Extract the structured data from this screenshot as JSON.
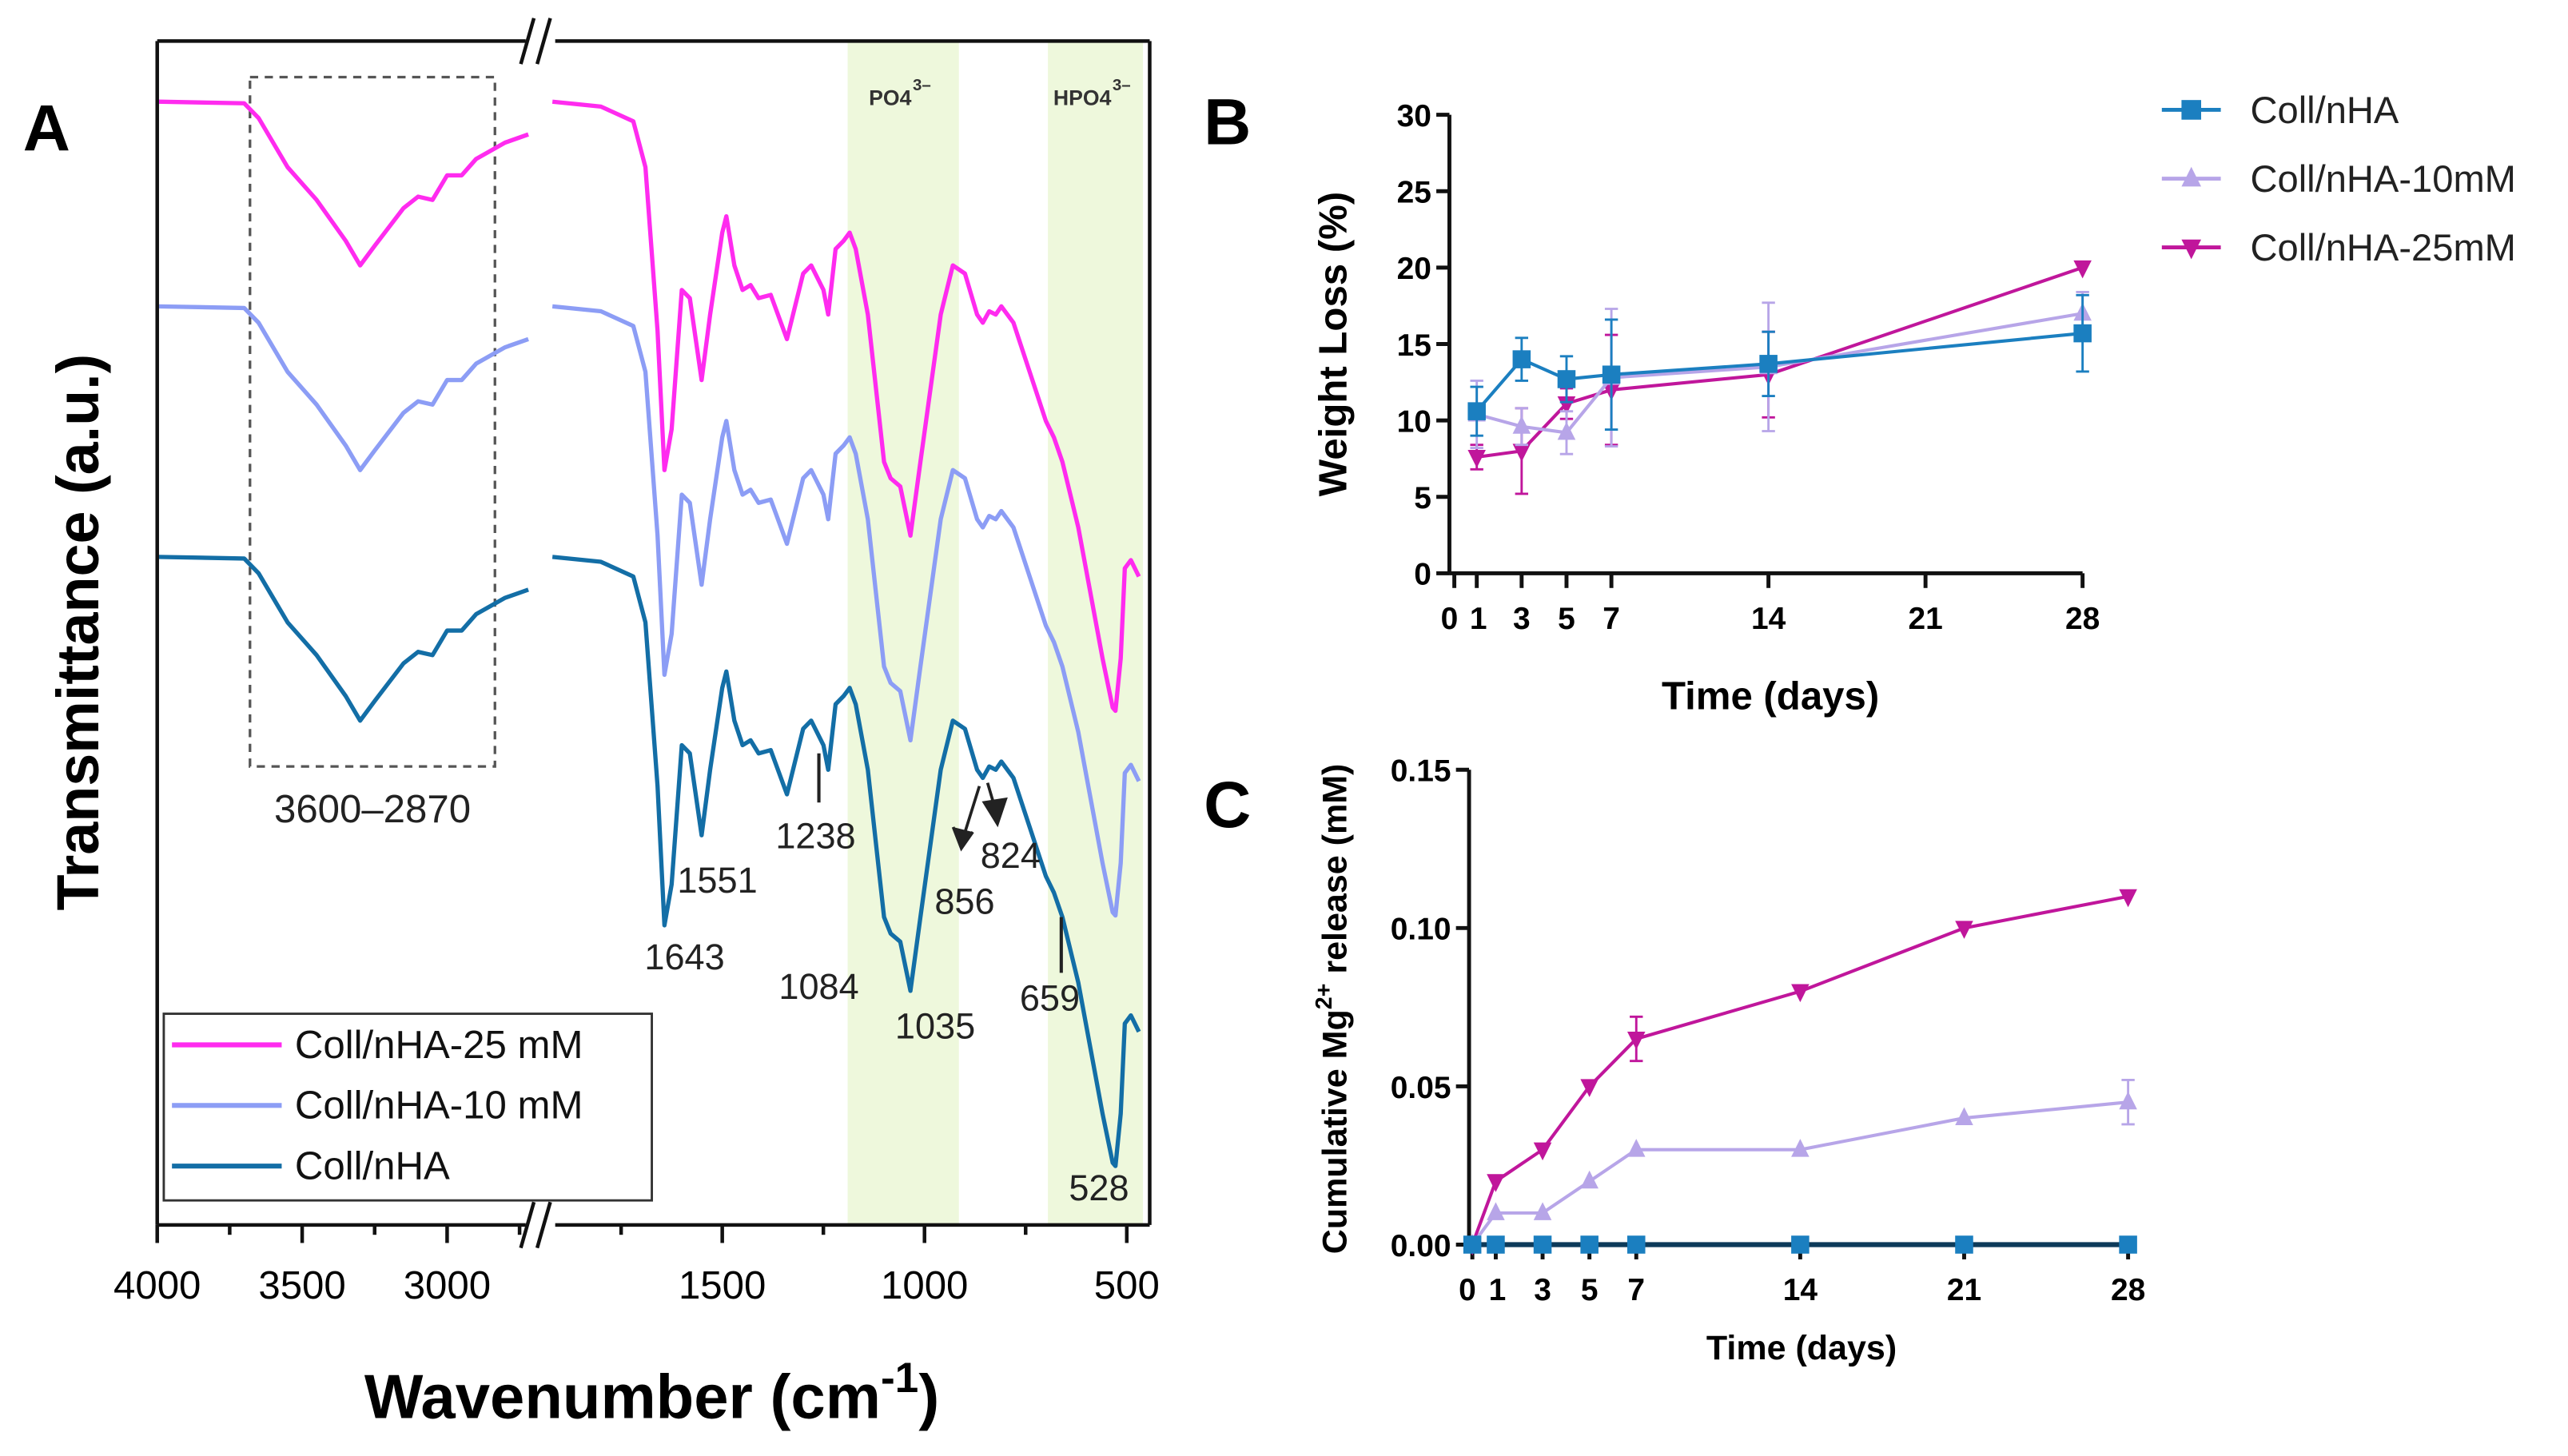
{
  "chart_data": [
    {
      "panel": "A",
      "type": "line",
      "xlabel": {
        "main": "Wavenumber (cm",
        "sup": "-1",
        "end": ")"
      },
      "ylabel": "Transmittance (a.u.)",
      "x_segments": [
        [
          4000,
          2720
        ],
        [
          1920,
          460
        ]
      ],
      "xticks_left": [
        4000,
        3500,
        3000
      ],
      "xticks_right": [
        1500,
        1000,
        500
      ],
      "ylim": [
        0,
        723
      ],
      "bands": [
        {
          "label": "PO4",
          "sup": "3–",
          "range": [
            1190,
            915
          ],
          "color": "#eef8dc"
        },
        {
          "label": "HPO4",
          "sup": "3–",
          "range": [
            695,
            460
          ],
          "color": "#eef8dc"
        }
      ],
      "box_label": "3600–2870",
      "box_range": [
        3680,
        2835
      ],
      "peak_labels": [
        "1643",
        "1551",
        "1238",
        "1084",
        "1035",
        "856",
        "824",
        "659",
        "528"
      ],
      "profile_left_x": [
        4000,
        3700,
        3650,
        3550,
        3450,
        3350,
        3300,
        3250,
        3150,
        3100,
        3050,
        3000,
        2950,
        2900,
        2800,
        2720
      ],
      "profile_left_y": [
        408,
        407,
        398,
        368,
        348,
        323,
        308,
        320,
        343,
        350,
        348,
        363,
        363,
        373,
        383,
        388
      ],
      "profile_right_x": [
        1920,
        1800,
        1720,
        1690,
        1660,
        1643,
        1625,
        1600,
        1580,
        1551,
        1530,
        1500,
        1490,
        1470,
        1450,
        1430,
        1410,
        1380,
        1340,
        1300,
        1280,
        1250,
        1238,
        1220,
        1200,
        1185,
        1170,
        1140,
        1100,
        1084,
        1060,
        1035,
        1010,
        960,
        930,
        900,
        870,
        856,
        840,
        824,
        810,
        780,
        740,
        700,
        680,
        659,
        620,
        590,
        560,
        535,
        528,
        515,
        505,
        490,
        470
      ],
      "profile_right_y": [
        408,
        405,
        396,
        368,
        268,
        183,
        208,
        293,
        288,
        238,
        278,
        328,
        338,
        308,
        293,
        296,
        288,
        290,
        263,
        303,
        308,
        293,
        278,
        318,
        323,
        328,
        318,
        278,
        188,
        178,
        173,
        143,
        188,
        278,
        308,
        303,
        278,
        273,
        280,
        278,
        283,
        273,
        243,
        213,
        203,
        188,
        148,
        108,
        68,
        38,
        36,
        68,
        123,
        128,
        118
      ],
      "series": [
        {
          "name": "Coll/nHA-25 mM",
          "offset": 278,
          "color": "#ff2bef"
        },
        {
          "name": "Coll/nHA-10 mM",
          "offset": 153,
          "color": "#8c9df5"
        },
        {
          "name": "Coll/nHA",
          "offset": 0,
          "color": "#136ea6"
        }
      ]
    },
    {
      "panel": "B",
      "type": "line",
      "xlabel": "Time (days)",
      "ylabel": "Weight Loss (%)",
      "xticks": [
        0,
        1,
        3,
        5,
        7,
        14,
        21,
        28
      ],
      "yticks": [
        0,
        5,
        10,
        15,
        20,
        25,
        30
      ],
      "ylim": [
        0,
        30
      ],
      "xlim": [
        0,
        28
      ],
      "legend_position": "top-right",
      "series": [
        {
          "name": "Coll/nHA",
          "marker": "square",
          "color": "#1b7fc0",
          "x": [
            1,
            3,
            5,
            7,
            14,
            28
          ],
          "y": [
            10.6,
            14.0,
            12.7,
            13.0,
            13.7,
            15.7
          ],
          "err": [
            1.6,
            1.4,
            1.5,
            3.6,
            2.1,
            2.5
          ]
        },
        {
          "name": "Coll/nHA-10mM",
          "marker": "triangle-up",
          "color": "#b7a5e8",
          "x": [
            1,
            3,
            5,
            7,
            14,
            28
          ],
          "y": [
            10.4,
            9.6,
            9.2,
            12.8,
            13.5,
            17.0
          ],
          "err": [
            2.2,
            1.2,
            1.4,
            4.5,
            4.2,
            1.4
          ]
        },
        {
          "name": "Coll/nHA-25mM",
          "marker": "triangle-down",
          "color": "#c0169b",
          "x": [
            1,
            3,
            5,
            7,
            14,
            28
          ],
          "y": [
            7.6,
            8.0,
            11.1,
            12.0,
            13.0,
            20.0
          ],
          "err": [
            0.8,
            2.8,
            1.0,
            3.6,
            2.8,
            0
          ]
        }
      ]
    },
    {
      "panel": "C",
      "type": "line",
      "xlabel": "Time (days)",
      "ylabel": {
        "main": "Cumulative Mg",
        "sup": "2+",
        "end": " release (mM)"
      },
      "xticks": [
        0,
        1,
        3,
        5,
        7,
        14,
        21,
        28
      ],
      "yticks": [
        "0.00",
        "0.05",
        "0.10",
        "0.15"
      ],
      "ylim": [
        0,
        0.15
      ],
      "xlim": [
        0,
        28
      ],
      "series": [
        {
          "name": "Coll/nHA",
          "marker": "square",
          "color": "#1b7fc0",
          "line": "#0d3a5a",
          "x": [
            0,
            1,
            3,
            5,
            7,
            14,
            21,
            28
          ],
          "y": [
            0,
            0,
            0,
            0,
            0,
            0,
            0,
            0
          ],
          "err": [
            0,
            0,
            0,
            0,
            0,
            0,
            0,
            0
          ]
        },
        {
          "name": "Coll/nHA-10mM",
          "marker": "triangle-up",
          "color": "#b7a5e8",
          "x": [
            0,
            1,
            3,
            5,
            7,
            14,
            21,
            28
          ],
          "y": [
            0,
            0.01,
            0.01,
            0.02,
            0.03,
            0.03,
            0.04,
            0.045
          ],
          "err": [
            0,
            0,
            0,
            0,
            0,
            0,
            0,
            0.007
          ]
        },
        {
          "name": "Coll/nHA-25mM",
          "marker": "triangle-down",
          "color": "#c0169b",
          "x": [
            0,
            1,
            3,
            5,
            7,
            14,
            21,
            28
          ],
          "y": [
            0,
            0.02,
            0.03,
            0.05,
            0.065,
            0.08,
            0.1,
            0.11
          ],
          "err": [
            0,
            0,
            0,
            0,
            0.007,
            0,
            0,
            0
          ]
        }
      ]
    }
  ],
  "panel_labels": {
    "a": "A",
    "b": "B",
    "c": "C"
  }
}
